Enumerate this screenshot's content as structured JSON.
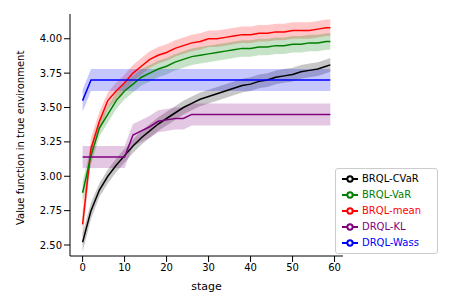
{
  "chart_data": {
    "type": "line",
    "xlabel": "stage",
    "ylabel": "Value function in true environment",
    "x": [
      0,
      2,
      4,
      6,
      8,
      10,
      12,
      14,
      16,
      18,
      20,
      22,
      24,
      26,
      28,
      30,
      32,
      34,
      36,
      38,
      40,
      42,
      44,
      46,
      48,
      50,
      52,
      54,
      56,
      58,
      59
    ],
    "xlim": [
      -3,
      62
    ],
    "xticks": [
      0,
      10,
      20,
      30,
      40,
      50,
      60
    ],
    "ylim": [
      2.42,
      4.18
    ],
    "yticks": [
      {
        "value": 2.5,
        "label": "2.50"
      },
      {
        "value": 2.75,
        "label": "2.75"
      },
      {
        "value": 3.0,
        "label": "3.00"
      },
      {
        "value": 3.25,
        "label": "3.25"
      },
      {
        "value": 3.5,
        "label": "3.50"
      },
      {
        "value": 3.75,
        "label": "3.75"
      },
      {
        "value": 4.0,
        "label": "4.00"
      }
    ],
    "grid": false,
    "legend": "lower right",
    "series": [
      {
        "name": "BRQL-mean",
        "color": "#ff0000",
        "values": [
          2.65,
          3.2,
          3.4,
          3.55,
          3.62,
          3.68,
          3.75,
          3.8,
          3.85,
          3.88,
          3.9,
          3.93,
          3.95,
          3.97,
          3.98,
          4.0,
          4.0,
          4.01,
          4.02,
          4.03,
          4.03,
          4.04,
          4.04,
          4.05,
          4.05,
          4.06,
          4.06,
          4.06,
          4.07,
          4.08,
          4.08
        ],
        "error": [
          0.1,
          0.08,
          0.07,
          0.06,
          0.06,
          0.06,
          0.06,
          0.06,
          0.06,
          0.06,
          0.06,
          0.06,
          0.06,
          0.06,
          0.06,
          0.06,
          0.06,
          0.06,
          0.06,
          0.06,
          0.06,
          0.06,
          0.06,
          0.06,
          0.06,
          0.06,
          0.06,
          0.06,
          0.06,
          0.06,
          0.06
        ]
      },
      {
        "name": "BRQL-CVaR",
        "color": "#000000",
        "values": [
          2.52,
          2.75,
          2.9,
          3.0,
          3.08,
          3.15,
          3.22,
          3.28,
          3.33,
          3.38,
          3.42,
          3.46,
          3.5,
          3.53,
          3.56,
          3.58,
          3.6,
          3.62,
          3.64,
          3.66,
          3.67,
          3.69,
          3.7,
          3.72,
          3.73,
          3.74,
          3.76,
          3.77,
          3.78,
          3.8,
          3.81
        ],
        "error": [
          0.07,
          0.06,
          0.05,
          0.05,
          0.05,
          0.05,
          0.05,
          0.05,
          0.05,
          0.05,
          0.05,
          0.05,
          0.05,
          0.05,
          0.05,
          0.05,
          0.05,
          0.05,
          0.05,
          0.05,
          0.05,
          0.05,
          0.05,
          0.05,
          0.05,
          0.05,
          0.05,
          0.05,
          0.05,
          0.05,
          0.05
        ]
      },
      {
        "name": "BRQL-VaR",
        "color": "#008000",
        "values": [
          2.88,
          3.15,
          3.35,
          3.45,
          3.55,
          3.62,
          3.67,
          3.72,
          3.75,
          3.78,
          3.8,
          3.83,
          3.85,
          3.87,
          3.88,
          3.89,
          3.9,
          3.91,
          3.92,
          3.93,
          3.93,
          3.94,
          3.94,
          3.95,
          3.95,
          3.96,
          3.96,
          3.97,
          3.97,
          3.98,
          3.98
        ],
        "error": [
          0.08,
          0.07,
          0.06,
          0.06,
          0.06,
          0.06,
          0.06,
          0.06,
          0.06,
          0.06,
          0.06,
          0.06,
          0.06,
          0.06,
          0.06,
          0.06,
          0.06,
          0.06,
          0.06,
          0.06,
          0.06,
          0.06,
          0.06,
          0.06,
          0.06,
          0.06,
          0.06,
          0.06,
          0.06,
          0.06,
          0.06
        ]
      },
      {
        "name": "DRQL-KL",
        "color": "#800080",
        "values": [
          3.14,
          3.14,
          3.14,
          3.14,
          3.14,
          3.14,
          3.3,
          3.33,
          3.36,
          3.4,
          3.41,
          3.42,
          3.42,
          3.45,
          3.45,
          3.45,
          3.45,
          3.45,
          3.45,
          3.45,
          3.45,
          3.45,
          3.45,
          3.45,
          3.45,
          3.45,
          3.45,
          3.45,
          3.45,
          3.45,
          3.45
        ],
        "error": [
          0.08,
          0.08,
          0.08,
          0.08,
          0.08,
          0.08,
          0.08,
          0.08,
          0.08,
          0.08,
          0.08,
          0.08,
          0.08,
          0.08,
          0.08,
          0.08,
          0.08,
          0.08,
          0.08,
          0.08,
          0.08,
          0.08,
          0.08,
          0.08,
          0.08,
          0.08,
          0.08,
          0.08,
          0.08,
          0.08,
          0.08
        ]
      },
      {
        "name": "DRQL-Wass",
        "color": "#0000ff",
        "values": [
          3.55,
          3.7,
          3.7,
          3.7,
          3.7,
          3.7,
          3.7,
          3.7,
          3.7,
          3.7,
          3.7,
          3.7,
          3.7,
          3.7,
          3.7,
          3.7,
          3.7,
          3.7,
          3.7,
          3.7,
          3.7,
          3.7,
          3.7,
          3.7,
          3.7,
          3.7,
          3.7,
          3.7,
          3.7,
          3.7,
          3.7
        ],
        "error": [
          0.08,
          0.08,
          0.08,
          0.08,
          0.08,
          0.08,
          0.08,
          0.08,
          0.08,
          0.08,
          0.08,
          0.08,
          0.08,
          0.08,
          0.08,
          0.08,
          0.08,
          0.08,
          0.08,
          0.08,
          0.08,
          0.08,
          0.08,
          0.08,
          0.08,
          0.08,
          0.08,
          0.08,
          0.08,
          0.08,
          0.08
        ]
      }
    ]
  }
}
